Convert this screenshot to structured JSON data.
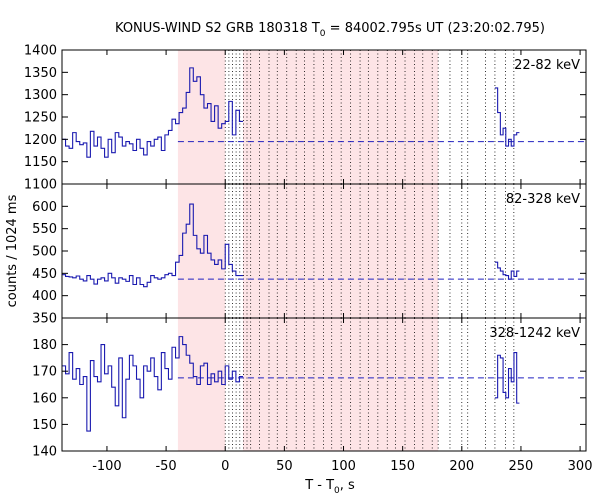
{
  "chart_data": {
    "type": "line",
    "title_main": "KONUS-WIND S2 GRB 180318 T",
    "title_sub": "0",
    "title_rest": " = 84002.795s UT (23:20:02.795)",
    "xlabel_main": "T - T",
    "xlabel_sub": "0",
    "xlabel_rest": ", s",
    "ylabel": "counts / 1024 ms",
    "xlim": [
      -138,
      305
    ],
    "xticks": [
      -100,
      -50,
      0,
      50,
      100,
      150,
      200,
      250,
      300
    ],
    "shaded_intervals": [
      [
        -40,
        0
      ],
      [
        15,
        180
      ]
    ],
    "time_boundaries": [
      0,
      3.1,
      6.1,
      9.2,
      12.3,
      15.4,
      18.4,
      21.5,
      29,
      37,
      44,
      52,
      60,
      67,
      75,
      83,
      90,
      98,
      106,
      114,
      121,
      129,
      137,
      144,
      152,
      160,
      167,
      175,
      180,
      190,
      200,
      205,
      220,
      228,
      237,
      244
    ],
    "panels": [
      {
        "band": "22-82 keV",
        "ylim": [
          1100,
          1400
        ],
        "yticks": [
          1100,
          1150,
          1200,
          1250,
          1300,
          1350,
          1400
        ],
        "background": 1195,
        "x_start": -138,
        "dx": 3.0,
        "values": [
          1200,
          1185,
          1180,
          1215,
          1195,
          1188,
          1192,
          1160,
          1218,
          1185,
          1205,
          1180,
          1160,
          1200,
          1170,
          1215,
          1205,
          1185,
          1195,
          1190,
          1175,
          1200,
          1180,
          1165,
          1195,
          1185,
          1200,
          1205,
          1175,
          1210,
          1220,
          1245,
          1235,
          1260,
          1270,
          1305,
          1360,
          1330,
          1340,
          1300,
          1270,
          1280,
          1240,
          1275,
          1225,
          1235,
          1240,
          1285,
          1210,
          1265,
          1240
        ],
        "late_x_start": 228,
        "late_values": [
          1315,
          1260,
          1210,
          1225,
          1185,
          1200,
          1185,
          1210,
          1215
        ]
      },
      {
        "band": "82-328 keV",
        "ylim": [
          350,
          650
        ],
        "yticks": [
          350,
          400,
          450,
          500,
          550,
          600
        ],
        "background": 437,
        "x_start": -138,
        "dx": 3.0,
        "values": [
          447,
          443,
          442,
          440,
          444,
          437,
          433,
          445,
          437,
          426,
          437,
          440,
          433,
          450,
          440,
          428,
          440,
          437,
          432,
          445,
          425,
          440,
          425,
          420,
          430,
          445,
          440,
          437,
          440,
          447,
          450,
          445,
          475,
          490,
          540,
          560,
          605,
          535,
          505,
          495,
          535,
          495,
          480,
          470,
          480,
          460,
          515,
          470,
          455,
          445,
          445
        ],
        "late_x_start": 228,
        "late_values": [
          475,
          462,
          455,
          447,
          445,
          437,
          455,
          443,
          455
        ]
      },
      {
        "band": "328-1242 keV",
        "ylim": [
          140,
          190
        ],
        "yticks": [
          140,
          150,
          160,
          170,
          180
        ],
        "background": 167.5,
        "x_start": -138,
        "dx": 3.0,
        "values": [
          172,
          169,
          177,
          167,
          171,
          165,
          168,
          147.5,
          174,
          168,
          166,
          180,
          169,
          172,
          164,
          157,
          175,
          152.5,
          167,
          176,
          172,
          167,
          160,
          172,
          170,
          175,
          168,
          163,
          177,
          171,
          167,
          179,
          175,
          183,
          180,
          176,
          173,
          168,
          165,
          172,
          173,
          165,
          169,
          166,
          170,
          165,
          172,
          167,
          170,
          166,
          168
        ],
        "late_x_start": 228,
        "late_values": [
          160,
          176,
          175,
          162,
          160,
          171,
          166,
          177,
          158
        ]
      }
    ]
  }
}
